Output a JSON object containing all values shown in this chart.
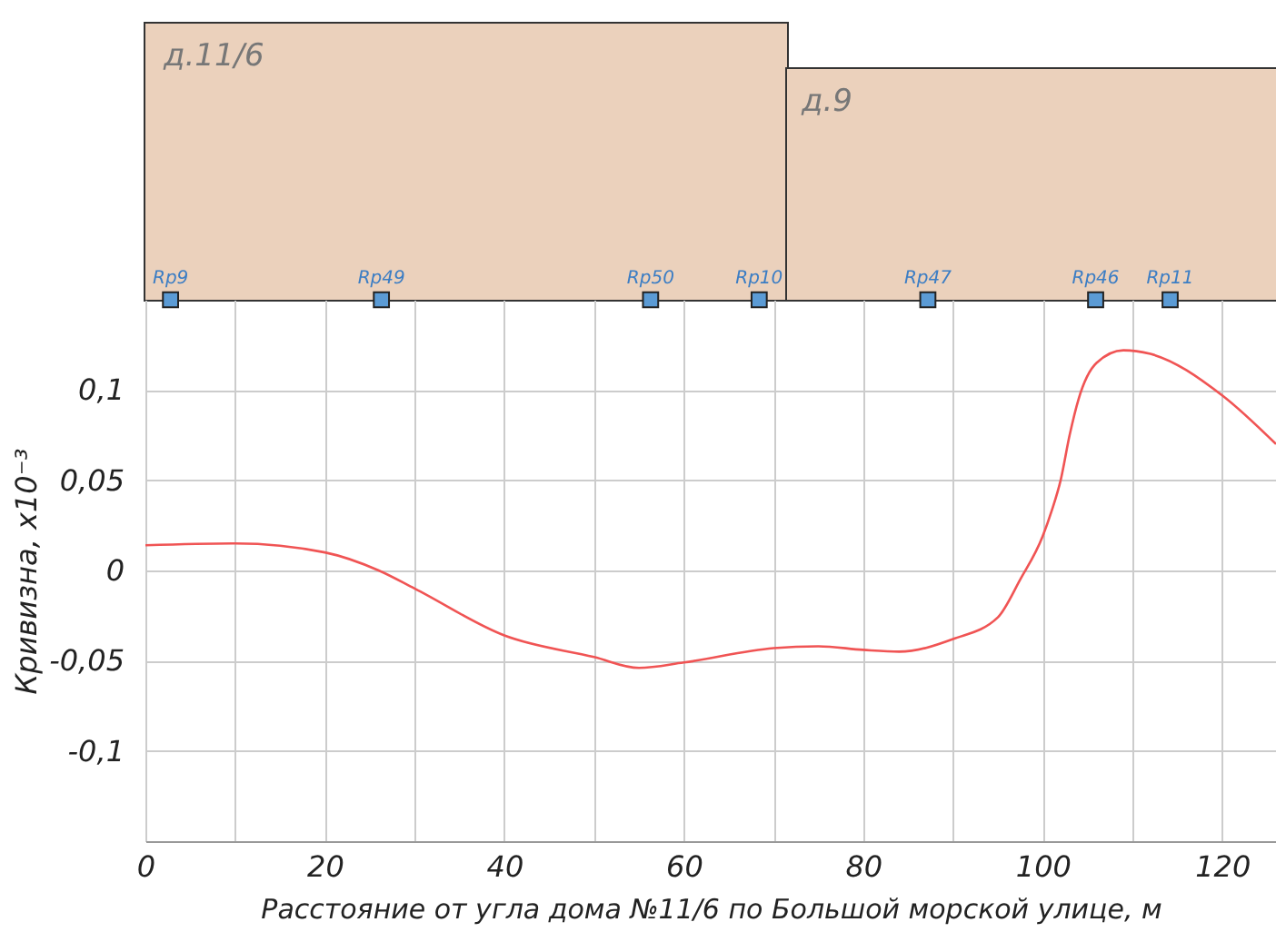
{
  "chart_data": {
    "type": "line",
    "xlabel": "Расстояние от угла дома №11/6 по Большой морской улице, м",
    "ylabel": "Кривизна, x10⁻³",
    "x": [
      0,
      10,
      20,
      26,
      30,
      40,
      50,
      55,
      60,
      70,
      75,
      80,
      84,
      90,
      95,
      97.5,
      100,
      101,
      102,
      103,
      104,
      106,
      109,
      112,
      120,
      126
    ],
    "series": [
      {
        "color": "#f05454",
        "values": [
          0.014,
          0.015,
          0.01,
          0,
          -0.01,
          -0.036,
          -0.048,
          -0.054,
          -0.051,
          -0.043,
          -0.042,
          -0.044,
          -0.045,
          -0.038,
          -0.026,
          -0.005,
          0.019,
          0.033,
          0.05,
          0.075,
          0.095,
          0.115,
          0.122,
          0.12,
          0.097,
          0.07
        ]
      }
    ],
    "xlim": [
      0,
      126
    ],
    "xticks": [
      0,
      {
        "value": 10,
        "label": null
      },
      20,
      {
        "value": 30,
        "label": null
      },
      40,
      {
        "value": 50,
        "label": null
      },
      60,
      {
        "value": 70,
        "label": null
      },
      80,
      {
        "value": 90,
        "label": null
      },
      100,
      {
        "value": 110,
        "label": null
      },
      120
    ],
    "ylim": [
      -0.15,
      0.15
    ],
    "yticks": [
      {
        "value": -0.1,
        "label": "-0,1"
      },
      {
        "value": -0.05,
        "label": "-0,05"
      },
      0,
      {
        "value": 0.05,
        "label": "0,05"
      },
      {
        "value": 0.1,
        "label": "0,1"
      }
    ],
    "grid": true,
    "line_style": "solid",
    "marker": "none",
    "annotations": [
      "д.11/6",
      "д.9",
      {
        "text": "Rp9",
        "x": 2.8,
        "y": 0.15
      },
      {
        "text": "Rp49",
        "x": 26.3,
        "y": 0.15
      },
      {
        "text": "Rp50",
        "x": 56.3,
        "y": 0.15
      },
      {
        "text": "Rp10",
        "x": 68.4,
        "y": 0.15
      },
      {
        "text": "Rp47",
        "x": 87.2,
        "y": 0.15
      },
      {
        "text": "Rp46",
        "x": 105.9,
        "y": 0.15
      },
      {
        "text": "Rp11",
        "x": 114.2,
        "y": 0.15
      }
    ]
  }
}
